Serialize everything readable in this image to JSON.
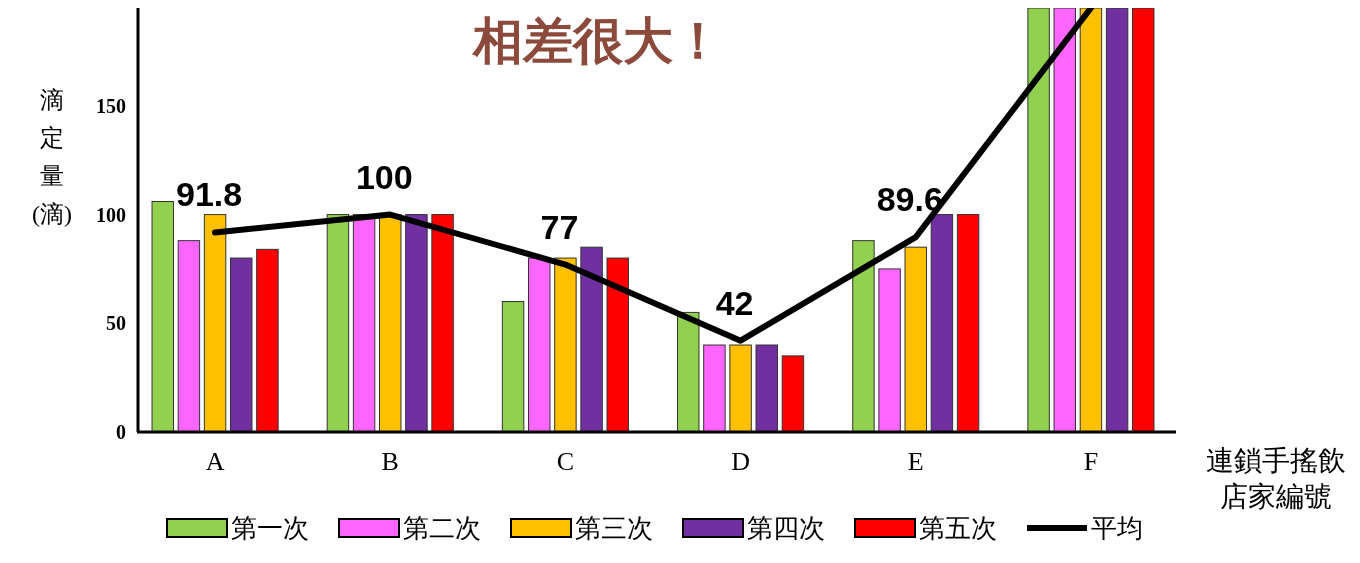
{
  "chart_data": {
    "type": "bar",
    "title": "相差很大！",
    "xlabel": "連鎖手搖飲店家編號",
    "ylabel": "滴定量(滴)",
    "categories": [
      "A",
      "B",
      "C",
      "D",
      "E",
      "F"
    ],
    "ylim": [
      0,
      195
    ],
    "yticks": [
      0,
      50,
      100,
      150
    ],
    "legend": "bottom",
    "grid": false,
    "series": [
      {
        "name": "第一次",
        "color": "#92d050",
        "values": [
          106,
          100,
          60,
          55,
          88,
          195
        ]
      },
      {
        "name": "第二次",
        "color": "#ff66ff",
        "values": [
          88,
          100,
          80,
          40,
          75,
          195
        ]
      },
      {
        "name": "第三次",
        "color": "#ffc000",
        "values": [
          100,
          100,
          80,
          40,
          85,
          195
        ]
      },
      {
        "name": "第四次",
        "color": "#7030a0",
        "values": [
          80,
          100,
          85,
          40,
          100,
          195
        ]
      },
      {
        "name": "第五次",
        "color": "#ff0000",
        "values": [
          84,
          100,
          80,
          35,
          100,
          195
        ]
      },
      {
        "name": "平均",
        "type": "line",
        "color": "#000000",
        "marker": "none",
        "values": [
          91.8,
          100,
          77,
          42,
          89.6,
          195
        ],
        "value_labels": [
          "91.8",
          "100",
          "77",
          "42",
          "89.6",
          null
        ]
      }
    ]
  }
}
